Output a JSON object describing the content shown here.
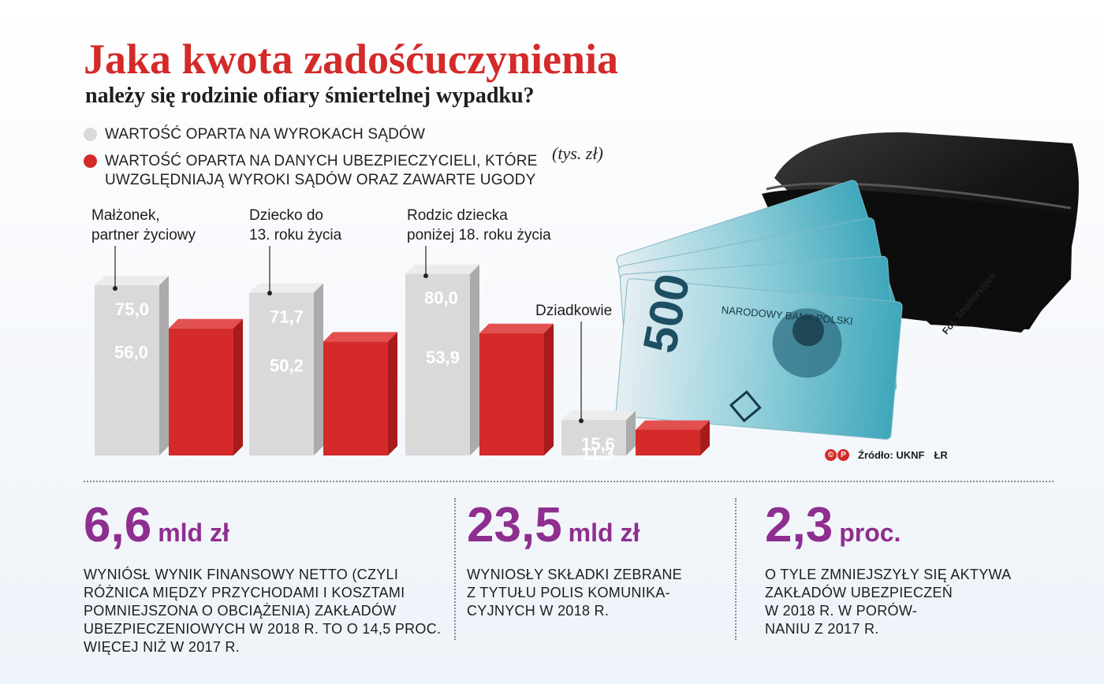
{
  "header": {
    "title": "Jaka kwota zadośćuczynienia",
    "subtitle": "należy się rodzinie ofiary śmiertelnej wypadku?"
  },
  "legend": {
    "items": [
      {
        "label": "WARTOŚĆ OPARTA NA WYROKACH SĄDÓW",
        "color": "#d9d9d9"
      },
      {
        "label": "WARTOŚĆ OPARTA NA DANYCH UBEZPIECZYCIELI, KTÓRE UWZGLĘDNIAJĄ WYROKI SĄDÓW ORAZ ZAWARTE UGODY",
        "color": "#d42a2a"
      }
    ],
    "unit": "(tys. zł)"
  },
  "chart_data": {
    "type": "bar",
    "title": "Jaka kwota zadośćuczynienia",
    "subtitle": "należy się rodzinie ofiary śmiertelnej wypadku?",
    "unit": "(tys. zł)",
    "categories": [
      "Małżonek,\npartner życiowy",
      "Dziecko do\n13. roku życia",
      "Rodzic dziecka\nponiżej 18. roku życia",
      "Dziadkowie"
    ],
    "series": [
      {
        "name": "WARTOŚĆ OPARTA NA WYROKACH SĄDÓW",
        "color": "#d9d9d9",
        "values": [
          75.0,
          71.7,
          80.0,
          15.6
        ],
        "labels": [
          "75,0",
          "71,7",
          "80,0",
          "15,6"
        ]
      },
      {
        "name": "WARTOŚĆ OPARTA NA DANYCH UBEZPIECZYCIELI, KTÓRE UWZGLĘDNIAJĄ WYROKI SĄDÓW ORAZ ZAWARTE UGODY",
        "color": "#d42a2a",
        "values": [
          56.0,
          50.2,
          53.9,
          11.3
        ],
        "labels": [
          "56,0",
          "50,2",
          "53,9",
          "11,3"
        ]
      }
    ],
    "ylim": [
      0,
      80
    ],
    "grid": false,
    "legend_position": "top-left"
  },
  "photo": {
    "credit": "Fot. Shutterstock",
    "icon": "wallet-banknotes-photo"
  },
  "source": {
    "logo": [
      "©",
      "P"
    ],
    "text": "Źródło: UKNF",
    "suffix": "ŁR"
  },
  "stats": [
    {
      "value": "6,6",
      "unit": "mld zł",
      "text": "WYNIÓSŁ WYNIK FINANSOWY NETTO (CZYLI\nRÓŻNICA MIĘDZY PRZYCHODAMI I KOSZTAMI\nPOMNIEJSZONA O OBCIĄŻENIA) ZAKŁADÓW\nUBEZPIECZENIOWYCH W 2018 R. TO O 14,5 PROC.\nWIĘCEJ NIŻ W 2017 R."
    },
    {
      "value": "23,5",
      "unit": "mld zł",
      "text": "WYNIOSŁY SKŁADKI ZEBRANE\nZ TYTUŁU POLIS KOMUNIKA-\nCYJNYCH W 2018 R."
    },
    {
      "value": "2,3",
      "unit": "proc.",
      "text": "O TYLE ZMNIEJSZYŁY SIĘ AKTYWA\nZAKŁADÓW UBEZPIECZEŃ\nW 2018 R. W PORÓW-\nNANIU Z 2017 R."
    }
  ]
}
